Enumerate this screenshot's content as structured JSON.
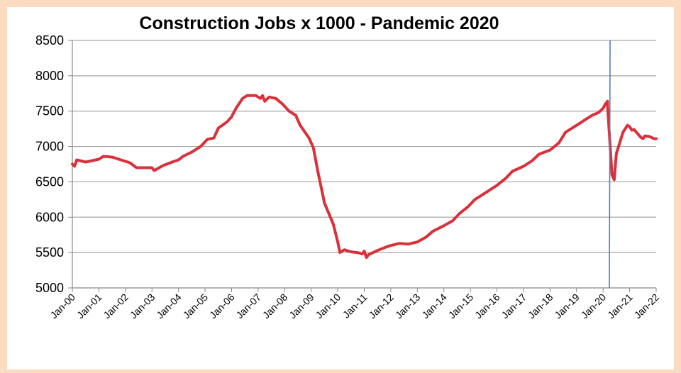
{
  "chart_data": {
    "type": "line",
    "title": "Construction Jobs x 1000 - Pandemic 2020",
    "xlabel": "",
    "ylabel": "",
    "ylim": [
      5000,
      8500
    ],
    "xlim": [
      "2000-01",
      "2022-01"
    ],
    "grid": "horizontal",
    "yticks": [
      5000,
      5500,
      6000,
      6500,
      7000,
      7500,
      8000,
      8500
    ],
    "xticks": [
      "Jan-00",
      "Jan-01",
      "Jan-02",
      "Jan-03",
      "Jan-04",
      "Jan-05",
      "Jan-06",
      "Jan-07",
      "Jan-08",
      "Jan-09",
      "Jan-10",
      "Jan-11",
      "Jan-12",
      "Jan-13",
      "Jan-14",
      "Jan-15",
      "Jan-16",
      "Jan-17",
      "Jan-18",
      "Jan-19",
      "Jan-20",
      "Jan-21",
      "Jan-22"
    ],
    "line_color": "#d9303a",
    "marker_line": {
      "x": "2020-04",
      "color": "#4f81bd"
    },
    "series": [
      {
        "x": [
          "2000-01",
          "2000-02",
          "2000-03",
          "2000-07",
          "2001-01",
          "2001-03",
          "2001-07",
          "2002-01",
          "2002-03",
          "2002-06",
          "2002-08",
          "2003-01",
          "2003-02",
          "2003-06",
          "2003-11",
          "2004-01",
          "2004-03",
          "2004-07",
          "2004-11",
          "2005-02",
          "2005-05",
          "2005-07",
          "2005-11",
          "2006-01",
          "2006-03",
          "2006-06",
          "2006-08",
          "2006-12",
          "2007-01",
          "2007-02",
          "2007-03",
          "2007-04",
          "2007-06",
          "2007-09",
          "2007-12",
          "2008-03",
          "2008-06",
          "2008-08",
          "2008-12",
          "2009-02",
          "2009-04",
          "2009-07",
          "2009-11",
          "2010-01",
          "2010-02",
          "2010-04",
          "2010-07",
          "2010-10",
          "2010-12",
          "2011-01",
          "2011-02",
          "2011-03",
          "2011-07",
          "2011-11",
          "2012-01",
          "2012-05",
          "2012-09",
          "2013-01",
          "2013-05",
          "2013-08",
          "2014-01",
          "2014-05",
          "2014-08",
          "2014-12",
          "2015-03",
          "2015-08",
          "2016-01",
          "2016-05",
          "2016-08",
          "2017-01",
          "2017-05",
          "2017-08",
          "2018-01",
          "2018-05",
          "2018-08",
          "2019-01",
          "2019-05",
          "2019-08",
          "2019-11",
          "2020-01",
          "2020-02",
          "2020-03",
          "2020-03",
          "2020-05",
          "2020-06",
          "2020-07",
          "2020-08",
          "2020-10",
          "2020-12",
          "2021-01",
          "2021-02",
          "2021-03",
          "2021-06",
          "2021-07",
          "2021-08",
          "2021-10",
          "2021-12",
          "2022-01"
        ],
        "y": [
          6750,
          6720,
          6810,
          6780,
          6820,
          6860,
          6850,
          6790,
          6770,
          6700,
          6700,
          6700,
          6660,
          6730,
          6790,
          6810,
          6860,
          6920,
          7000,
          7100,
          7120,
          7260,
          7350,
          7420,
          7540,
          7680,
          7720,
          7720,
          7700,
          7680,
          7720,
          7640,
          7700,
          7680,
          7600,
          7500,
          7440,
          7300,
          7120,
          6980,
          6650,
          6200,
          5900,
          5650,
          5500,
          5540,
          5510,
          5500,
          5480,
          5520,
          5430,
          5470,
          5530,
          5580,
          5600,
          5630,
          5620,
          5650,
          5720,
          5800,
          5880,
          5950,
          6050,
          6150,
          6250,
          6350,
          6450,
          6550,
          6650,
          6720,
          6800,
          6890,
          6950,
          7050,
          7200,
          7300,
          7380,
          7440,
          7480,
          7540,
          7600,
          7640,
          7590,
          6600,
          6530,
          6900,
          7000,
          7200,
          7300,
          7280,
          7230,
          7240,
          7130,
          7110,
          7150,
          7140,
          7110,
          7110
        ]
      }
    ]
  }
}
